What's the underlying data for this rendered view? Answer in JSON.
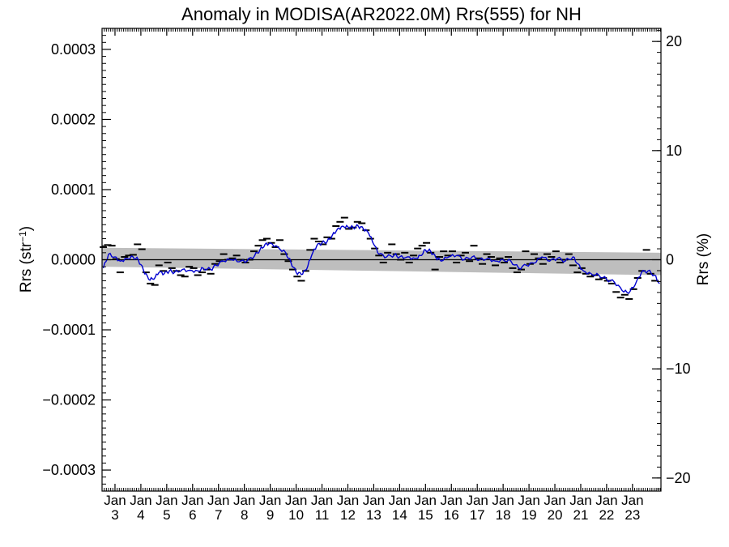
{
  "chart_data": {
    "type": "line",
    "title": "Anomaly in MODISA(AR2022.0M) Rrs(555) for NH",
    "ylabel_left": "Rrs (str",
    "ylabel_left_sup": "−1",
    "ylabel_left_close": ")",
    "ylabel_right": "Rrs (%)",
    "xlim": [
      2002.5,
      2024.1
    ],
    "ylim_left": [
      -0.00033,
      0.00033
    ],
    "ylim_right": [
      -21.2,
      21.2
    ],
    "yticks_left": [
      {
        "value": 0.0003,
        "label": "0.0003"
      },
      {
        "value": 0.0002,
        "label": "0.0002"
      },
      {
        "value": 0.0001,
        "label": "0.0001"
      },
      {
        "value": 0.0,
        "label": "0.0000"
      },
      {
        "value": -0.0001,
        "label": "−0.0001"
      },
      {
        "value": -0.0002,
        "label": "−0.0002"
      },
      {
        "value": -0.0003,
        "label": "−0.0003"
      }
    ],
    "yticks_right": [
      {
        "value": 20,
        "label": "20"
      },
      {
        "value": 10,
        "label": "10"
      },
      {
        "value": 0,
        "label": "0"
      },
      {
        "value": -10,
        "label": "−10"
      },
      {
        "value": -20,
        "label": "−20"
      }
    ],
    "xticks": [
      {
        "year": 2003,
        "month": "Jan",
        "label": "3"
      },
      {
        "year": 2004,
        "month": "Jan",
        "label": "4"
      },
      {
        "year": 2005,
        "month": "Jan",
        "label": "5"
      },
      {
        "year": 2006,
        "month": "Jan",
        "label": "6"
      },
      {
        "year": 2007,
        "month": "Jan",
        "label": "7"
      },
      {
        "year": 2008,
        "month": "Jan",
        "label": "8"
      },
      {
        "year": 2009,
        "month": "Jan",
        "label": "9"
      },
      {
        "year": 2010,
        "month": "Jan",
        "label": "10"
      },
      {
        "year": 2011,
        "month": "Jan",
        "label": "11"
      },
      {
        "year": 2012,
        "month": "Jan",
        "label": "12"
      },
      {
        "year": 2013,
        "month": "Jan",
        "label": "13"
      },
      {
        "year": 2014,
        "month": "Jan",
        "label": "14"
      },
      {
        "year": 2015,
        "month": "Jan",
        "label": "15"
      },
      {
        "year": 2016,
        "month": "Jan",
        "label": "16"
      },
      {
        "year": 2017,
        "month": "Jan",
        "label": "17"
      },
      {
        "year": 2018,
        "month": "Jan",
        "label": "18"
      },
      {
        "year": 2019,
        "month": "Jan",
        "label": "19"
      },
      {
        "year": 2020,
        "month": "Jan",
        "label": "20"
      },
      {
        "year": 2021,
        "month": "Jan",
        "label": "21"
      },
      {
        "year": 2022,
        "month": "Jan",
        "label": "22"
      },
      {
        "year": 2023,
        "month": "Jan",
        "label": "23"
      }
    ],
    "zero_line": 0.0,
    "uncertainty_band": [
      {
        "x": 2002.5,
        "upper": 1.7e-05,
        "lower": -1e-05
      },
      {
        "x": 2024.1,
        "upper": 1e-05,
        "lower": -2.2e-05
      }
    ],
    "band_color": "#bebebe",
    "line_color": "#0000d0",
    "marker_color": "#000000",
    "smoothed_anchors": [
      [
        2002.55,
        -1.2e-05
      ],
      [
        2002.75,
        8e-06
      ],
      [
        2003.0,
        4e-06
      ],
      [
        2003.2,
        -2e-06
      ],
      [
        2003.45,
        2e-06
      ],
      [
        2003.7,
        4e-06
      ],
      [
        2003.9,
        0.0
      ],
      [
        2004.1,
        -1.5e-05
      ],
      [
        2004.3,
        -2.8e-05
      ],
      [
        2004.5,
        -2.8e-05
      ],
      [
        2004.7,
        -1.8e-05
      ],
      [
        2004.9,
        -2e-05
      ],
      [
        2005.1,
        -1.6e-05
      ],
      [
        2005.3,
        -1.8e-05
      ],
      [
        2005.6,
        -1.4e-05
      ],
      [
        2005.9,
        -1.5e-05
      ],
      [
        2006.2,
        -1.6e-05
      ],
      [
        2006.4,
        -1.2e-05
      ],
      [
        2006.7,
        -1.4e-05
      ],
      [
        2006.9,
        -8e-06
      ],
      [
        2007.2,
        -2e-06
      ],
      [
        2007.5,
        0.0
      ],
      [
        2007.8,
        -3e-06
      ],
      [
        2008.1,
        -2e-06
      ],
      [
        2008.4,
        6e-06
      ],
      [
        2008.6,
        1.4e-05
      ],
      [
        2008.8,
        2.2e-05
      ],
      [
        2009.0,
        2.4e-05
      ],
      [
        2009.3,
        1.8e-05
      ],
      [
        2009.6,
        1e-05
      ],
      [
        2009.8,
        -4e-06
      ],
      [
        2010.0,
        -1.8e-05
      ],
      [
        2010.2,
        -2.1e-05
      ],
      [
        2010.4,
        -1.4e-05
      ],
      [
        2010.6,
        6e-06
      ],
      [
        2010.8,
        2e-05
      ],
      [
        2011.0,
        2.4e-05
      ],
      [
        2011.2,
        2.6e-05
      ],
      [
        2011.4,
        3.5e-05
      ],
      [
        2011.6,
        4.4e-05
      ],
      [
        2011.8,
        4.8e-05
      ],
      [
        2012.0,
        4.7e-05
      ],
      [
        2012.2,
        4.6e-05
      ],
      [
        2012.4,
        4.8e-05
      ],
      [
        2012.6,
        4.4e-05
      ],
      [
        2012.8,
        3.8e-05
      ],
      [
        2013.0,
        2.2e-05
      ],
      [
        2013.2,
        8e-06
      ],
      [
        2013.5,
        4e-06
      ],
      [
        2013.8,
        7e-06
      ],
      [
        2014.0,
        4e-06
      ],
      [
        2014.3,
        4e-06
      ],
      [
        2014.6,
        2e-06
      ],
      [
        2014.8,
        6e-06
      ],
      [
        2015.0,
        1.4e-05
      ],
      [
        2015.2,
        1.2e-05
      ],
      [
        2015.4,
        3e-06
      ],
      [
        2015.6,
        -2e-06
      ],
      [
        2015.9,
        4e-06
      ],
      [
        2016.2,
        6e-06
      ],
      [
        2016.5,
        0.0
      ],
      [
        2016.8,
        4e-06
      ],
      [
        2017.1,
        0.0
      ],
      [
        2017.4,
        2e-06
      ],
      [
        2017.7,
        -2e-06
      ],
      [
        2018.0,
        0.0
      ],
      [
        2018.3,
        -2e-06
      ],
      [
        2018.6,
        -1.2e-05
      ],
      [
        2018.9,
        -8e-06
      ],
      [
        2019.2,
        -5e-06
      ],
      [
        2019.5,
        4e-06
      ],
      [
        2019.8,
        -2e-06
      ],
      [
        2020.1,
        2e-06
      ],
      [
        2020.4,
        -2e-06
      ],
      [
        2020.7,
        4e-06
      ],
      [
        2020.9,
        -6e-06
      ],
      [
        2021.1,
        -1.6e-05
      ],
      [
        2021.4,
        -2e-05
      ],
      [
        2021.7,
        -2.2e-05
      ],
      [
        2022.0,
        -2.8e-05
      ],
      [
        2022.3,
        -3.2e-05
      ],
      [
        2022.6,
        -4.4e-05
      ],
      [
        2022.85,
        -4.8e-05
      ],
      [
        2023.1,
        -3.6e-05
      ],
      [
        2023.35,
        -1.8e-05
      ],
      [
        2023.6,
        -1.6e-05
      ],
      [
        2023.85,
        -2.2e-05
      ],
      [
        2024.05,
        -3.4e-05
      ]
    ],
    "scatter_points": [
      [
        2002.55,
        1.8e-05
      ],
      [
        2002.72,
        2.1e-05
      ],
      [
        2002.88,
        2e-05
      ],
      [
        2003.04,
        1e-06
      ],
      [
        2003.2,
        -1.8e-05
      ],
      [
        2003.37,
        4e-06
      ],
      [
        2003.53,
        6e-06
      ],
      [
        2003.7,
        7e-06
      ],
      [
        2003.87,
        2.2e-05
      ],
      [
        2004.04,
        1.5e-05
      ],
      [
        2004.2,
        -1.8e-05
      ],
      [
        2004.37,
        -3.4e-05
      ],
      [
        2004.54,
        -3.6e-05
      ],
      [
        2004.7,
        -8e-06
      ],
      [
        2004.87,
        -1.6e-05
      ],
      [
        2005.04,
        -4e-06
      ],
      [
        2005.2,
        -1.2e-05
      ],
      [
        2005.37,
        -1.6e-05
      ],
      [
        2005.54,
        -2.2e-05
      ],
      [
        2005.7,
        -2.4e-05
      ],
      [
        2005.87,
        -1e-05
      ],
      [
        2006.04,
        -1.2e-05
      ],
      [
        2006.2,
        -2.2e-05
      ],
      [
        2006.37,
        -1.8e-05
      ],
      [
        2006.54,
        -1.4e-05
      ],
      [
        2006.7,
        -2e-05
      ],
      [
        2006.87,
        -6e-06
      ],
      [
        2007.04,
        -2e-06
      ],
      [
        2007.2,
        8e-06
      ],
      [
        2007.37,
        0.0
      ],
      [
        2007.54,
        2e-06
      ],
      [
        2007.7,
        6e-06
      ],
      [
        2007.87,
        0.0
      ],
      [
        2008.04,
        -4e-06
      ],
      [
        2008.2,
        0.0
      ],
      [
        2008.37,
        1.2e-05
      ],
      [
        2008.54,
        2e-05
      ],
      [
        2008.7,
        2.8e-05
      ],
      [
        2008.87,
        3e-05
      ],
      [
        2009.04,
        2.4e-05
      ],
      [
        2009.2,
        1.8e-05
      ],
      [
        2009.37,
        2.8e-05
      ],
      [
        2009.54,
        8e-06
      ],
      [
        2009.7,
        -2e-06
      ],
      [
        2009.87,
        -1.4e-05
      ],
      [
        2010.04,
        -2.4e-05
      ],
      [
        2010.2,
        -3e-05
      ],
      [
        2010.37,
        -1.6e-05
      ],
      [
        2010.54,
        1.4e-05
      ],
      [
        2010.7,
        3e-05
      ],
      [
        2010.87,
        2.6e-05
      ],
      [
        2011.04,
        2.2e-05
      ],
      [
        2011.2,
        3.2e-05
      ],
      [
        2011.37,
        3e-05
      ],
      [
        2011.54,
        4.8e-05
      ],
      [
        2011.7,
        5.4e-05
      ],
      [
        2011.87,
        6e-05
      ],
      [
        2012.04,
        4.4e-05
      ],
      [
        2012.2,
        4.6e-05
      ],
      [
        2012.37,
        5.4e-05
      ],
      [
        2012.54,
        5.2e-05
      ],
      [
        2012.7,
        4.2e-05
      ],
      [
        2012.87,
        3e-05
      ],
      [
        2013.04,
        1.6e-05
      ],
      [
        2013.2,
        6e-06
      ],
      [
        2013.37,
        -4e-06
      ],
      [
        2013.54,
        1e-05
      ],
      [
        2013.7,
        2.2e-05
      ],
      [
        2013.87,
        8e-06
      ],
      [
        2014.04,
        0.0
      ],
      [
        2014.2,
        1e-05
      ],
      [
        2014.37,
        -4e-06
      ],
      [
        2014.54,
        6e-06
      ],
      [
        2014.7,
        1.6e-05
      ],
      [
        2014.87,
        2e-05
      ],
      [
        2015.04,
        2.4e-05
      ],
      [
        2015.2,
        1e-05
      ],
      [
        2015.37,
        -1.4e-05
      ],
      [
        2015.54,
        4e-06
      ],
      [
        2015.7,
        1.2e-05
      ],
      [
        2015.87,
        6e-06
      ],
      [
        2016.04,
        1.2e-05
      ],
      [
        2016.2,
        -4e-06
      ],
      [
        2016.37,
        6e-06
      ],
      [
        2016.54,
        1e-05
      ],
      [
        2016.7,
        -2e-06
      ],
      [
        2016.87,
        2e-05
      ],
      [
        2017.04,
        2e-06
      ],
      [
        2017.2,
        -6e-06
      ],
      [
        2017.37,
        8e-06
      ],
      [
        2017.54,
        4e-06
      ],
      [
        2017.7,
        -8e-06
      ],
      [
        2017.87,
        2e-06
      ],
      [
        2018.04,
        -4e-06
      ],
      [
        2018.2,
        4e-06
      ],
      [
        2018.37,
        -1.2e-05
      ],
      [
        2018.54,
        -1.8e-05
      ],
      [
        2018.7,
        -1.4e-05
      ],
      [
        2018.87,
        1.2e-05
      ],
      [
        2019.04,
        -6e-06
      ],
      [
        2019.2,
        8e-06
      ],
      [
        2019.37,
        2e-06
      ],
      [
        2019.54,
        -6e-06
      ],
      [
        2019.7,
        8e-06
      ],
      [
        2019.87,
        4e-06
      ],
      [
        2020.04,
        1.2e-05
      ],
      [
        2020.2,
        -4e-06
      ],
      [
        2020.37,
        0.0
      ],
      [
        2020.54,
        8e-06
      ],
      [
        2020.7,
        -8e-06
      ],
      [
        2020.87,
        -1.8e-05
      ],
      [
        2021.04,
        -1.2e-05
      ],
      [
        2021.2,
        -2e-05
      ],
      [
        2021.37,
        -2.4e-05
      ],
      [
        2021.54,
        -2.2e-05
      ],
      [
        2021.7,
        -2.8e-05
      ],
      [
        2021.87,
        -2.6e-05
      ],
      [
        2022.04,
        -3e-05
      ],
      [
        2022.2,
        -3.4e-05
      ],
      [
        2022.37,
        -4.6e-05
      ],
      [
        2022.54,
        -5.4e-05
      ],
      [
        2022.7,
        -5e-05
      ],
      [
        2022.87,
        -5.6e-05
      ],
      [
        2023.04,
        -4.2e-05
      ],
      [
        2023.2,
        -2.6e-05
      ],
      [
        2023.37,
        -1.6e-05
      ],
      [
        2023.54,
        1.4e-05
      ],
      [
        2023.7,
        -2e-05
      ],
      [
        2023.87,
        -3e-05
      ]
    ]
  }
}
